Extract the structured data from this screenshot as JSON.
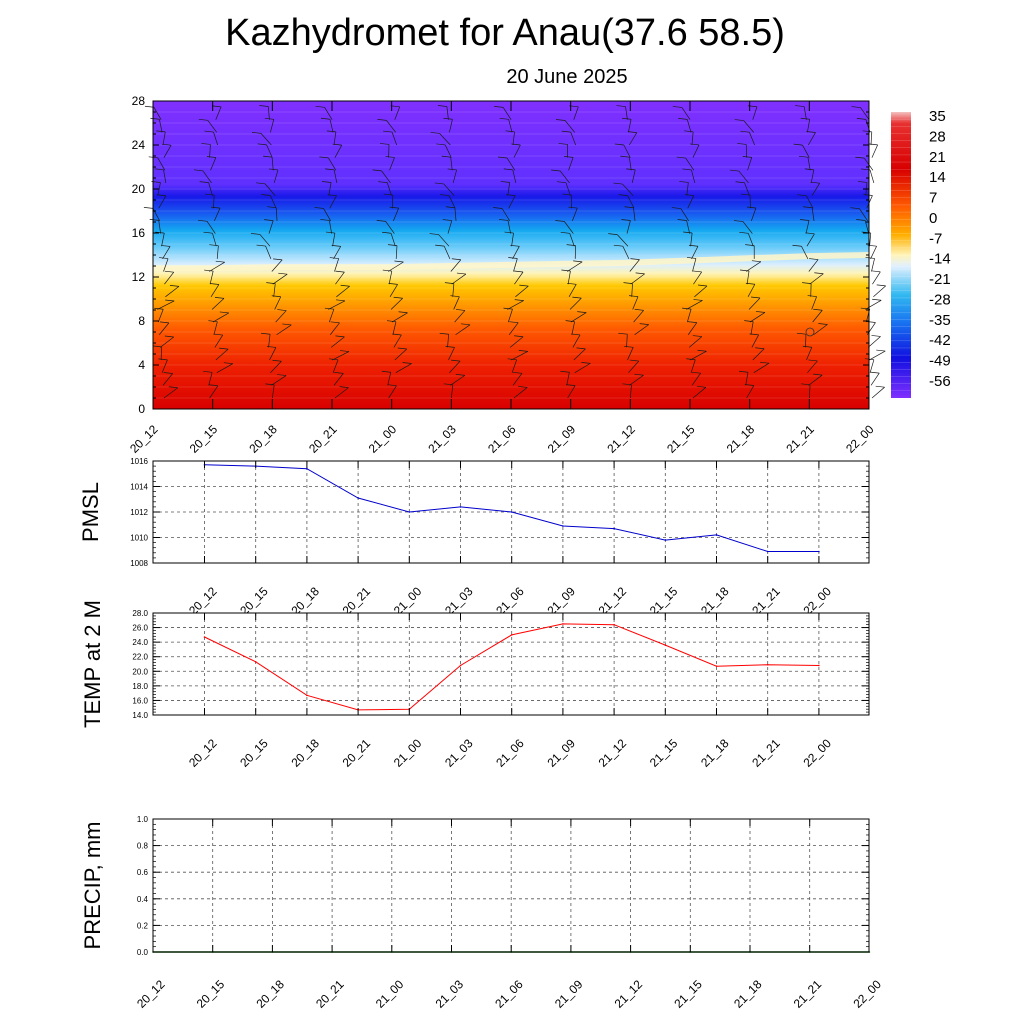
{
  "title": "Kazhydromet for Anau(37.6 58.5)",
  "subtitle": "20 June 2025",
  "chart_data": [
    {
      "type": "heatmap",
      "name": "vertical temperature cross-section with wind barbs",
      "title": "",
      "xlabel": "",
      "ylabel": "",
      "x": [
        "20_12",
        "20_15",
        "20_18",
        "20_21",
        "21_00",
        "21_03",
        "21_06",
        "21_09",
        "21_12",
        "21_15",
        "21_18",
        "21_21",
        "22_00"
      ],
      "ylim": [
        0,
        28
      ],
      "yticks": [
        0,
        4,
        8,
        12,
        16,
        20,
        24,
        28
      ],
      "colorbar_labels": [
        "35",
        "28",
        "21",
        "14",
        "7",
        "0",
        "-7",
        "-14",
        "-21",
        "-28",
        "-35",
        "-42",
        "-49",
        "-56"
      ],
      "colorbar_range": [
        -60,
        38
      ],
      "freezing_level": [
        12.8,
        12.8,
        12.9,
        12.9,
        12.9,
        13.0,
        13.1,
        13.2,
        13.3,
        13.5,
        13.7,
        13.9,
        14.0
      ],
      "colors": [
        "#f0a0a0",
        "#d00000",
        "#ff6a00",
        "#ffd000",
        "#fff6c0",
        "#c0e8ff",
        "#14b0f0",
        "#1818f0",
        "#8030ff"
      ]
    },
    {
      "type": "line",
      "title": "",
      "xlabel": "",
      "ylabel": "PMSL",
      "x": [
        "20_12",
        "20_15",
        "20_18",
        "20_21",
        "21_00",
        "21_03",
        "21_06",
        "21_09",
        "21_12",
        "21_15",
        "21_18",
        "21_21",
        "22_00"
      ],
      "values": [
        1015.7,
        1015.6,
        1015.4,
        1013.1,
        1012.0,
        1012.4,
        1012.0,
        1010.9,
        1010.7,
        1009.8,
        1010.2,
        1008.9,
        1008.9
      ],
      "ylim": [
        1008,
        1016
      ],
      "yticks": [
        "1008",
        "1010",
        "1012",
        "1014",
        "1016"
      ],
      "color": "#0000cc",
      "grid": true
    },
    {
      "type": "line",
      "title": "",
      "xlabel": "",
      "ylabel": "TEMP at 2 M",
      "x": [
        "20_12",
        "20_15",
        "20_18",
        "20_21",
        "21_00",
        "21_03",
        "21_06",
        "21_09",
        "21_12",
        "21_15",
        "21_18",
        "21_21",
        "22_00"
      ],
      "values": [
        24.7,
        21.3,
        16.7,
        14.7,
        14.8,
        20.8,
        25.0,
        26.5,
        26.4,
        23.6,
        20.7,
        20.9,
        20.8
      ],
      "ylim": [
        14,
        28
      ],
      "yticks": [
        "14.0",
        "16.0",
        "18.0",
        "20.0",
        "22.0",
        "24.0",
        "26.0",
        "28.0"
      ],
      "color": "#ff0000",
      "grid": true
    },
    {
      "type": "line",
      "title": "",
      "xlabel": "",
      "ylabel": "PRECIP, mm",
      "x": [
        "20_12",
        "20_15",
        "20_18",
        "20_21",
        "21_00",
        "21_03",
        "21_06",
        "21_09",
        "21_12",
        "21_15",
        "21_18",
        "21_21",
        "22_00"
      ],
      "values": [
        0,
        0,
        0,
        0,
        0,
        0,
        0,
        0,
        0,
        0,
        0,
        0,
        0
      ],
      "ylim": [
        0,
        1
      ],
      "yticks": [
        "0.0",
        "0.2",
        "0.4",
        "0.6",
        "0.8",
        "1.0"
      ],
      "color": "#006400",
      "grid": true
    }
  ]
}
